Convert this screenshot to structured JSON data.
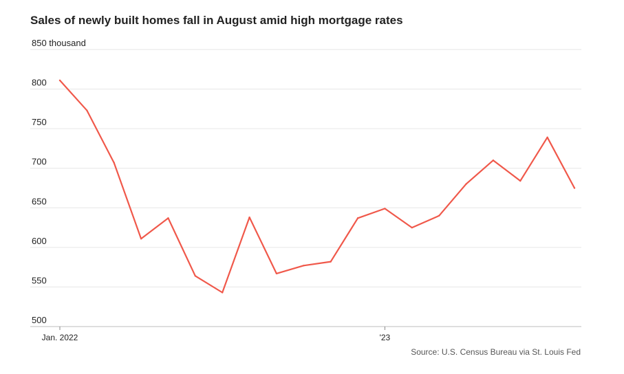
{
  "title": "Sales of newly built homes fall in August amid high mortgage rates",
  "source": "Source: U.S. Census Bureau via St. Louis Fed",
  "colors": {
    "line": "#f0584a",
    "grid": "#e6e6e6",
    "text": "#222222",
    "muted": "#555555"
  },
  "chart_data": {
    "type": "line",
    "title": "Sales of newly built homes fall in August amid high mortgage rates",
    "xlabel": "",
    "ylabel": "",
    "ylim": [
      500,
      850
    ],
    "grid": true,
    "y_ticks": [
      500,
      550,
      600,
      650,
      700,
      750,
      800,
      850
    ],
    "y_tick_labels": [
      "500",
      "550",
      "600",
      "650",
      "700",
      "750",
      "800",
      "850 thousand"
    ],
    "x_ticks": [
      {
        "x": "2022-01",
        "label": "Jan. 2022"
      },
      {
        "x": "2023-01",
        "label": "'23"
      }
    ],
    "x": [
      "2022-01",
      "2022-02",
      "2022-03",
      "2022-04",
      "2022-05",
      "2022-06",
      "2022-07",
      "2022-08",
      "2022-09",
      "2022-10",
      "2022-11",
      "2022-12",
      "2023-01",
      "2023-02",
      "2023-03",
      "2023-04",
      "2023-05",
      "2023-06",
      "2023-07",
      "2023-08"
    ],
    "series": [
      {
        "values": [
          811,
          773,
          707,
          611,
          637,
          564,
          543,
          638,
          567,
          577,
          582,
          637,
          649,
          625,
          640,
          680,
          710,
          684,
          739,
          675
        ]
      }
    ]
  }
}
